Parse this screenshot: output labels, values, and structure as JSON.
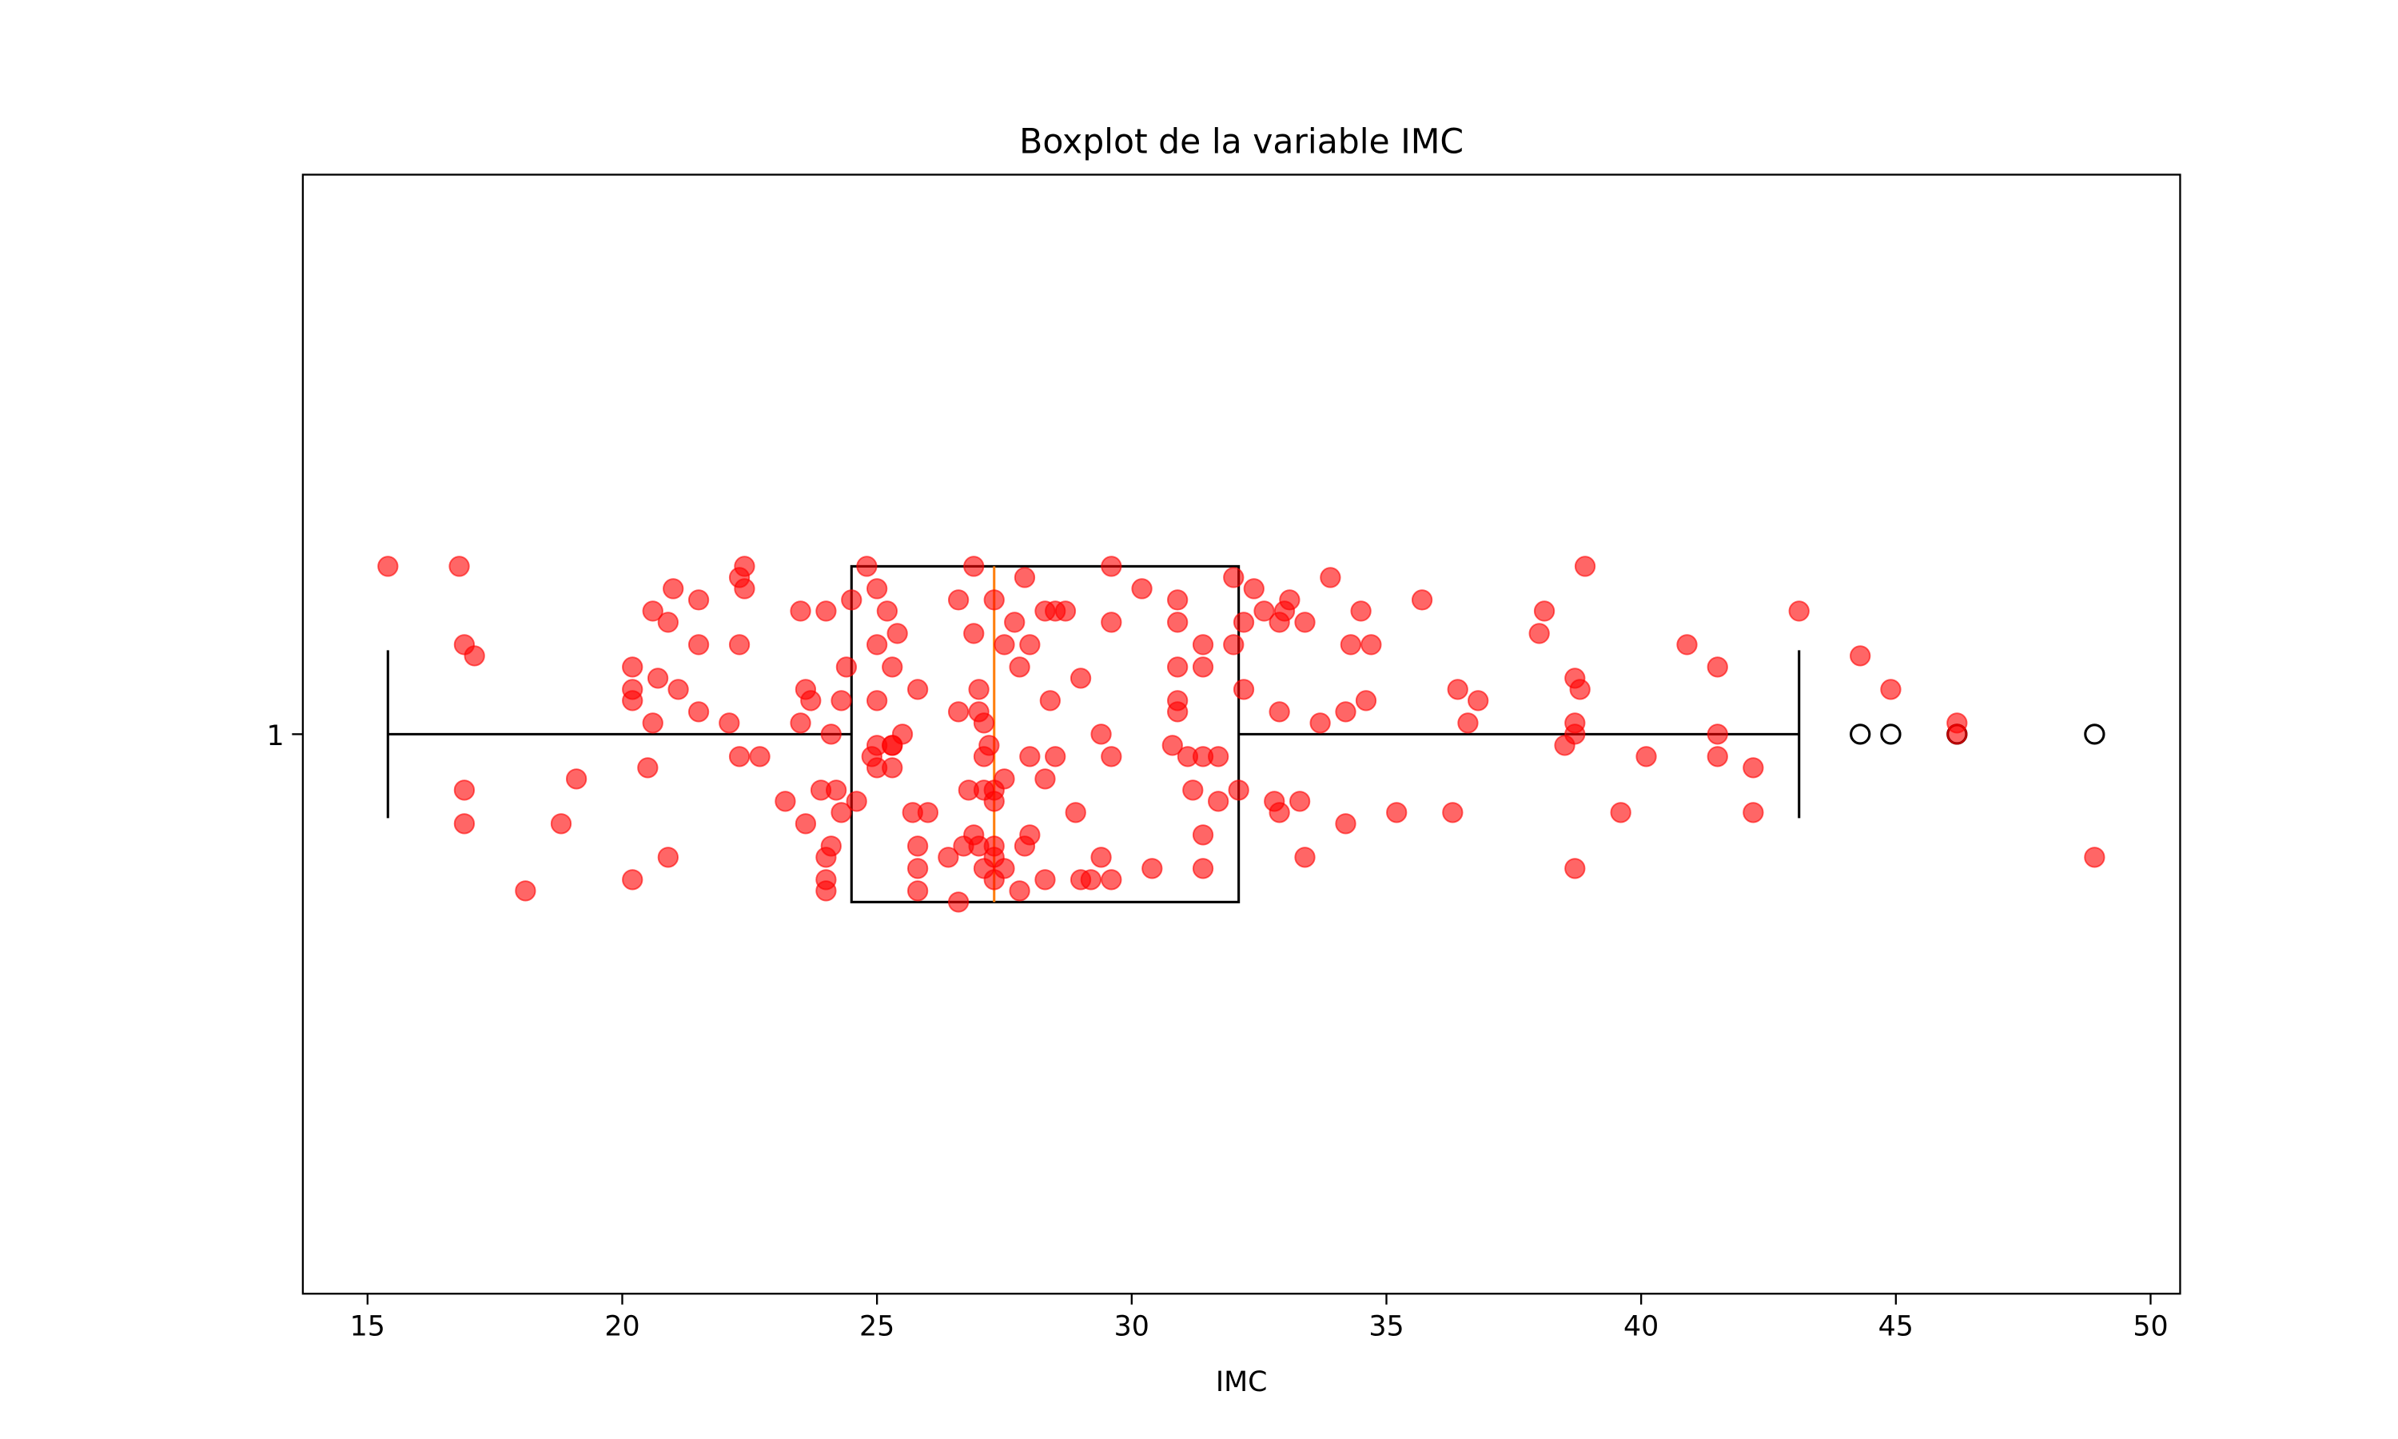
{
  "chart_data": {
    "type": "box",
    "title": "Boxplot de la variable IMC",
    "xlabel": "IMC",
    "box": {
      "position": 1,
      "whislo": 15.4,
      "q1": 24.5,
      "med": 27.3,
      "q3": 32.1,
      "whishi": 43.1,
      "fliers": [
        44.3,
        44.9,
        46.2,
        48.9
      ]
    },
    "box_color": "#000000",
    "median_color": "#ff7f0e",
    "points": {
      "color": "#ff0000",
      "alpha": 0.6,
      "x": [
        15.4,
        16.8,
        16.9,
        17.1,
        16.9,
        16.9,
        18.1,
        18.8,
        19.1,
        20.2,
        20.2,
        20.2,
        20.2,
        20.5,
        20.6,
        20.6,
        20.7,
        20.9,
        20.9,
        21.0,
        21.1,
        21.5,
        21.5,
        21.5,
        22.1,
        22.3,
        22.3,
        22.3,
        22.4,
        22.4,
        22.7,
        23.2,
        23.5,
        23.5,
        23.6,
        23.6,
        23.7,
        23.9,
        24.0,
        24.0,
        24.0,
        24.0,
        24.1,
        24.1,
        24.2,
        24.3,
        24.3,
        24.4,
        24.5,
        24.6,
        24.8,
        25.0,
        25.0,
        25.0,
        25.0,
        24.9,
        25.0,
        25.3,
        25.3,
        25.3,
        25.2,
        25.3,
        25.4,
        25.5,
        25.7,
        25.8,
        25.8,
        25.8,
        25.8,
        26.0,
        26.4,
        26.6,
        26.6,
        26.6,
        26.7,
        26.8,
        26.9,
        26.9,
        26.9,
        27.0,
        27.0,
        27.1,
        27.1,
        27.1,
        27.0,
        27.1,
        27.2,
        27.3,
        27.3,
        27.3,
        27.3,
        27.3,
        27.3,
        27.5,
        27.5,
        27.5,
        27.7,
        27.8,
        27.8,
        27.9,
        27.9,
        28.0,
        28.0,
        28.0,
        28.3,
        28.3,
        28.3,
        28.5,
        28.4,
        28.5,
        28.7,
        28.9,
        29.0,
        29.0,
        29.2,
        29.4,
        29.4,
        29.6,
        29.6,
        29.6,
        29.6,
        30.2,
        30.4,
        30.8,
        30.9,
        30.9,
        30.9,
        30.9,
        30.9,
        31.1,
        31.2,
        31.4,
        31.4,
        31.4,
        31.4,
        31.4,
        31.7,
        31.7,
        32.0,
        32.0,
        32.1,
        32.2,
        32.2,
        32.4,
        32.6,
        32.8,
        32.9,
        32.9,
        32.9,
        33.0,
        33.1,
        33.3,
        33.4,
        33.4,
        33.7,
        33.9,
        34.2,
        34.2,
        34.3,
        34.5,
        34.7,
        34.6,
        35.2,
        35.7,
        36.3,
        36.4,
        36.6,
        36.8,
        38.0,
        38.1,
        38.5,
        38.7,
        38.7,
        38.7,
        38.7,
        38.8,
        38.9,
        39.6,
        40.1,
        40.9,
        41.5,
        41.5,
        41.5,
        42.2,
        42.2,
        43.1,
        44.3,
        44.9,
        46.2,
        46.2,
        48.9
      ],
      "y": [
        1.15,
        1.15,
        1.08,
        1.07,
        0.95,
        0.92,
        0.86,
        0.92,
        0.96,
        1.06,
        1.04,
        1.03,
        0.87,
        0.97,
        1.01,
        1.11,
        1.05,
        0.89,
        1.1,
        1.13,
        1.04,
        1.12,
        1.08,
        1.02,
        1.01,
        0.98,
        1.08,
        1.14,
        1.15,
        1.13,
        0.98,
        0.94,
        1.01,
        1.11,
        1.04,
        0.92,
        1.03,
        0.95,
        0.89,
        0.87,
        0.86,
        1.11,
        0.9,
        1.0,
        0.95,
        0.93,
        1.03,
        1.06,
        1.12,
        0.94,
        1.15,
        1.13,
        1.08,
        1.03,
        0.99,
        0.98,
        0.97,
        0.99,
        0.99,
        0.97,
        1.11,
        1.06,
        1.09,
        1.0,
        0.93,
        1.04,
        0.9,
        0.88,
        0.86,
        0.93,
        0.89,
        0.85,
        1.12,
        1.02,
        0.9,
        0.95,
        1.15,
        1.09,
        0.91,
        1.04,
        1.02,
        1.01,
        0.98,
        0.95,
        0.9,
        0.88,
        0.99,
        1.12,
        0.95,
        0.94,
        0.9,
        0.89,
        0.87,
        0.96,
        1.08,
        0.88,
        1.1,
        1.06,
        0.86,
        1.14,
        0.9,
        0.91,
        1.08,
        0.98,
        0.96,
        0.87,
        1.11,
        1.11,
        1.03,
        0.98,
        1.11,
        0.93,
        1.05,
        0.87,
        0.87,
        1.0,
        0.89,
        0.87,
        0.98,
        1.15,
        1.1,
        1.13,
        0.88,
        0.99,
        1.12,
        1.1,
        1.06,
        1.03,
        1.02,
        0.98,
        0.95,
        0.98,
        0.88,
        0.91,
        1.06,
        1.08,
        0.94,
        0.98,
        1.14,
        1.08,
        0.95,
        1.1,
        1.04,
        1.13,
        1.11,
        0.94,
        0.93,
        1.02,
        1.1,
        1.11,
        1.12,
        0.94,
        1.1,
        0.89,
        1.01,
        1.14,
        1.02,
        0.92,
        1.08,
        1.11,
        1.08,
        1.03,
        0.93,
        1.12,
        0.93,
        1.04,
        1.01,
        1.03,
        1.09,
        1.11,
        0.99,
        1.01,
        1.0,
        1.05,
        0.88,
        1.04,
        1.15,
        0.93,
        0.98,
        1.08,
        1.06,
        1.0,
        0.98,
        0.97,
        0.93,
        1.11,
        1.07,
        1.04,
        1.01,
        1.0,
        0.89
      ]
    },
    "xlim": [
      13.73,
      50.58
    ],
    "xticks": [
      15,
      20,
      25,
      30,
      35,
      40,
      45,
      50
    ],
    "ylim": [
      0.5,
      1.5
    ],
    "yticks": [
      1
    ]
  }
}
